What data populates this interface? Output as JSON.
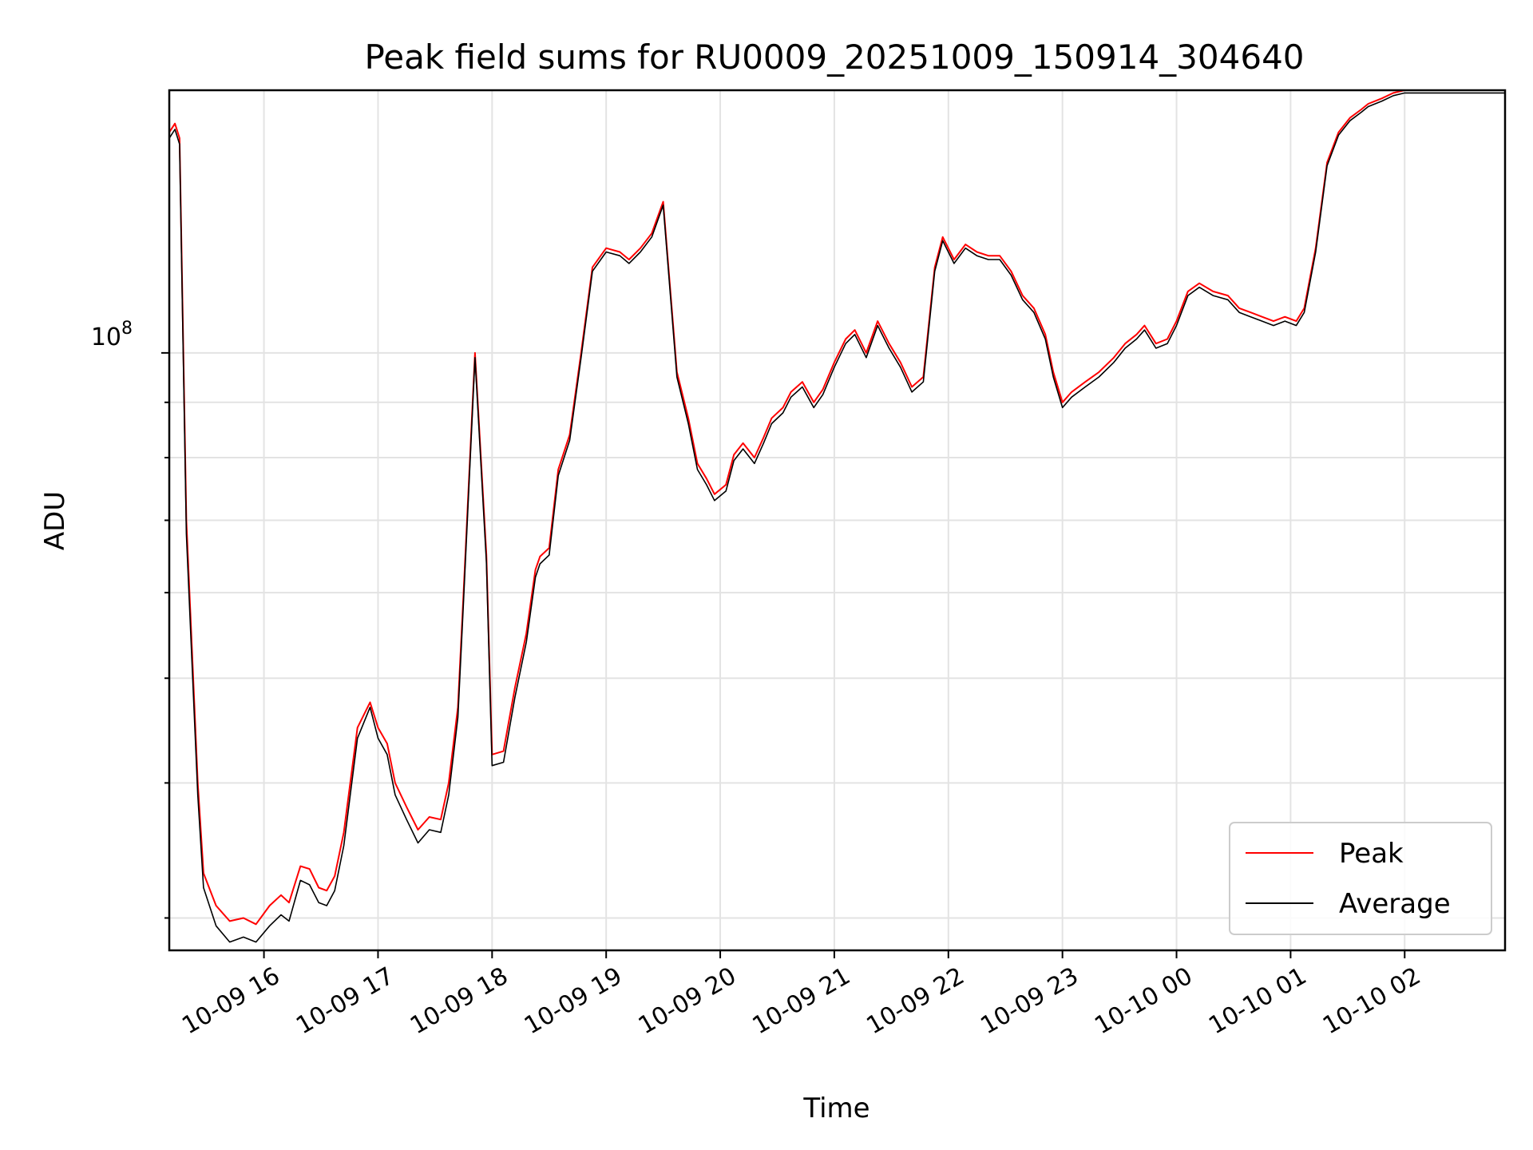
{
  "chart_data": {
    "type": "line",
    "title": "Peak field sums for RU0009_20251009_150914_304640",
    "xlabel": "Time",
    "ylabel": "ADU",
    "yscale": "log",
    "ylim": [
      28000000,
      175000000
    ],
    "xlim_hours": [
      15.17,
      2.88
    ],
    "y_major_tick": {
      "value": 100000000,
      "base": "10",
      "exp": "8"
    },
    "y_minor_ticks": [
      30000000,
      40000000,
      50000000,
      60000000,
      70000000,
      80000000,
      90000000,
      200000000
    ],
    "x_ticks": [
      {
        "hour": 16,
        "label": "10-09 16"
      },
      {
        "hour": 17,
        "label": "10-09 17"
      },
      {
        "hour": 18,
        "label": "10-09 18"
      },
      {
        "hour": 19,
        "label": "10-09 19"
      },
      {
        "hour": 20,
        "label": "10-09 20"
      },
      {
        "hour": 21,
        "label": "10-09 21"
      },
      {
        "hour": 22,
        "label": "10-09 22"
      },
      {
        "hour": 23,
        "label": "10-09 23"
      },
      {
        "hour": 24,
        "label": "10-10 00"
      },
      {
        "hour": 25,
        "label": "10-10 01"
      },
      {
        "hour": 26,
        "label": "10-10 02"
      }
    ],
    "grid": true,
    "legend_position": "bottom-right",
    "series": [
      {
        "name": "Peak",
        "color": "#ff0000",
        "hours": [
          15.17,
          15.22,
          15.26,
          15.32,
          15.42,
          15.47,
          15.58,
          15.7,
          15.82,
          15.93,
          16.05,
          16.15,
          16.22,
          16.32,
          16.4,
          16.48,
          16.55,
          16.62,
          16.7,
          16.82,
          16.93,
          17.0,
          17.08,
          17.15,
          17.25,
          17.35,
          17.45,
          17.55,
          17.62,
          17.7,
          17.75,
          17.85,
          17.95,
          18.0,
          18.1,
          18.2,
          18.3,
          18.38,
          18.42,
          18.5,
          18.58,
          18.68,
          18.78,
          18.88,
          19.0,
          19.12,
          19.2,
          19.3,
          19.4,
          19.5,
          19.62,
          19.72,
          19.8,
          19.88,
          19.95,
          20.05,
          20.12,
          20.2,
          20.3,
          20.38,
          20.45,
          20.55,
          20.62,
          20.72,
          20.82,
          20.9,
          21.0,
          21.1,
          21.18,
          21.28,
          21.38,
          21.48,
          21.58,
          21.68,
          21.78,
          21.88,
          21.95,
          22.05,
          22.15,
          22.25,
          22.35,
          22.45,
          22.55,
          22.65,
          22.75,
          22.85,
          22.92,
          23.0,
          23.08,
          23.2,
          23.32,
          23.45,
          23.55,
          23.65,
          23.72,
          23.82,
          23.92,
          24.0,
          24.1,
          24.2,
          24.32,
          24.45,
          24.55,
          24.65,
          24.75,
          24.85,
          24.95,
          25.05,
          25.12,
          25.22,
          25.32,
          25.42,
          25.52,
          25.62,
          25.68,
          25.8,
          25.9,
          26.0,
          26.1,
          26.2,
          26.3,
          26.38,
          26.45,
          26.52,
          26.6,
          26.68,
          26.75,
          26.82,
          26.88
        ],
        "values": [
          160000000,
          163000000,
          158000000,
          70000000,
          40000000,
          33000000,
          30800000,
          29800000,
          30000000,
          29600000,
          30800000,
          31500000,
          31000000,
          33500000,
          33300000,
          32000000,
          31800000,
          32800000,
          36000000,
          45000000,
          47500000,
          45000000,
          43500000,
          40000000,
          38000000,
          36200000,
          37200000,
          37000000,
          40000000,
          47000000,
          60000000,
          100000000,
          65000000,
          42500000,
          42800000,
          49000000,
          55000000,
          63000000,
          64800000,
          66000000,
          78000000,
          84000000,
          100000000,
          120000000,
          125000000,
          124000000,
          122000000,
          125000000,
          129000000,
          138000000,
          96000000,
          87000000,
          79000000,
          76500000,
          74000000,
          75500000,
          80500000,
          82500000,
          80000000,
          83500000,
          87000000,
          89000000,
          92000000,
          94000000,
          90000000,
          92500000,
          98000000,
          103000000,
          105000000,
          100000000,
          107000000,
          102000000,
          98000000,
          93000000,
          95000000,
          120000000,
          128000000,
          122000000,
          126000000,
          124000000,
          123000000,
          123000000,
          119000000,
          113000000,
          110000000,
          104000000,
          96000000,
          90000000,
          92000000,
          94000000,
          96000000,
          99000000,
          102000000,
          104000000,
          106000000,
          102000000,
          103000000,
          107000000,
          114000000,
          116000000,
          114000000,
          113000000,
          110000000,
          109000000,
          108000000,
          107000000,
          108000000,
          107000000,
          110000000,
          125000000,
          150000000,
          160000000,
          165000000,
          168000000,
          170000000,
          172000000,
          174000000,
          175000000,
          175000000,
          175000000,
          175000000,
          175000000,
          175000000,
          175000000,
          175000000,
          175000000,
          175000000,
          175000000,
          175000000
        ]
      },
      {
        "name": "Average",
        "color": "#000000",
        "hours": [
          15.17,
          15.22,
          15.26,
          15.32,
          15.42,
          15.47,
          15.58,
          15.7,
          15.82,
          15.93,
          16.05,
          16.15,
          16.22,
          16.32,
          16.4,
          16.48,
          16.55,
          16.62,
          16.7,
          16.82,
          16.93,
          17.0,
          17.08,
          17.15,
          17.25,
          17.35,
          17.45,
          17.55,
          17.62,
          17.7,
          17.75,
          17.85,
          17.95,
          18.0,
          18.1,
          18.2,
          18.3,
          18.38,
          18.42,
          18.5,
          18.58,
          18.68,
          18.78,
          18.88,
          19.0,
          19.12,
          19.2,
          19.3,
          19.4,
          19.5,
          19.62,
          19.72,
          19.8,
          19.88,
          19.95,
          20.05,
          20.12,
          20.2,
          20.3,
          20.38,
          20.45,
          20.55,
          20.62,
          20.72,
          20.82,
          20.9,
          21.0,
          21.1,
          21.18,
          21.28,
          21.38,
          21.48,
          21.58,
          21.68,
          21.78,
          21.88,
          21.95,
          22.05,
          22.15,
          22.25,
          22.35,
          22.45,
          22.55,
          22.65,
          22.75,
          22.85,
          22.92,
          23.0,
          23.08,
          23.2,
          23.32,
          23.45,
          23.55,
          23.65,
          23.72,
          23.82,
          23.92,
          24.0,
          24.1,
          24.2,
          24.32,
          24.45,
          24.55,
          24.65,
          24.75,
          24.85,
          24.95,
          25.05,
          25.12,
          25.22,
          25.32,
          25.42,
          25.52,
          25.62,
          25.68,
          25.8,
          25.9,
          26.0,
          26.1,
          26.2,
          26.3,
          26.38,
          26.45,
          26.52,
          26.6,
          26.68,
          26.75,
          26.82,
          26.88
        ],
        "values": [
          158000000,
          161000000,
          156000000,
          68000000,
          39000000,
          32000000,
          29500000,
          28500000,
          28800000,
          28500000,
          29500000,
          30200000,
          29800000,
          32500000,
          32200000,
          31000000,
          30800000,
          31800000,
          35000000,
          44000000,
          47000000,
          44000000,
          42500000,
          39000000,
          37000000,
          35200000,
          36200000,
          36000000,
          39000000,
          46000000,
          59000000,
          99000000,
          64000000,
          41500000,
          41800000,
          48000000,
          54000000,
          62000000,
          63800000,
          65000000,
          77000000,
          83000000,
          99000000,
          119000000,
          124000000,
          123000000,
          121000000,
          124000000,
          128000000,
          137000000,
          95000000,
          86000000,
          78000000,
          75500000,
          73000000,
          74500000,
          79500000,
          81500000,
          79000000,
          82500000,
          86000000,
          88000000,
          91000000,
          93000000,
          89000000,
          91500000,
          97000000,
          102000000,
          104000000,
          99000000,
          106000000,
          101000000,
          97000000,
          92000000,
          94000000,
          119000000,
          127000000,
          121000000,
          125000000,
          123000000,
          122000000,
          122000000,
          118000000,
          112000000,
          109000000,
          103000000,
          95000000,
          89000000,
          91000000,
          93000000,
          95000000,
          98000000,
          101000000,
          103000000,
          105000000,
          101000000,
          102000000,
          106000000,
          113000000,
          115000000,
          113000000,
          112000000,
          109000000,
          108000000,
          107000000,
          106000000,
          107000000,
          106000000,
          109000000,
          124000000,
          149000000,
          159000000,
          164000000,
          167000000,
          169000000,
          171000000,
          173000000,
          174000000,
          174000000,
          174000000,
          174000000,
          174000000,
          174000000,
          174000000,
          174000000,
          174000000,
          174000000,
          174000000,
          174000000
        ]
      }
    ]
  }
}
